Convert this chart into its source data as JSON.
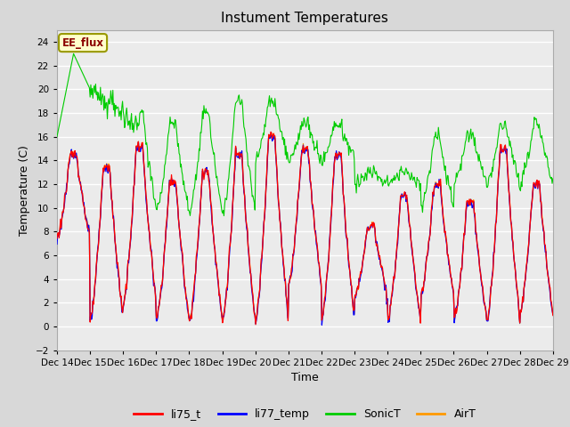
{
  "title": "Instument Temperatures",
  "xlabel": "Time",
  "ylabel": "Temperature (C)",
  "ylim": [
    -2,
    25
  ],
  "yticks": [
    -2,
    0,
    2,
    4,
    6,
    8,
    10,
    12,
    14,
    16,
    18,
    20,
    22,
    24
  ],
  "x_labels": [
    "Dec 14",
    "Dec 15",
    "Dec 16",
    "Dec 17",
    "Dec 18",
    "Dec 19",
    "Dec 20",
    "Dec 21",
    "Dec 22",
    "Dec 23",
    "Dec 24",
    "Dec 25",
    "Dec 26",
    "Dec 27",
    "Dec 28",
    "Dec 29"
  ],
  "annotation_text": "EE_flux",
  "annotation_facecolor": "#ffffcc",
  "annotation_edgecolor": "#999900",
  "annotation_textcolor": "#8B0000",
  "colors": {
    "li75_t": "#ff0000",
    "li77_temp": "#0000ff",
    "SonicT": "#00cc00",
    "AirT": "#ff9900"
  },
  "bg_color": "#d8d8d8",
  "plot_bg": "#ebebeb",
  "grid_color": "#ffffff",
  "n_points": 720
}
